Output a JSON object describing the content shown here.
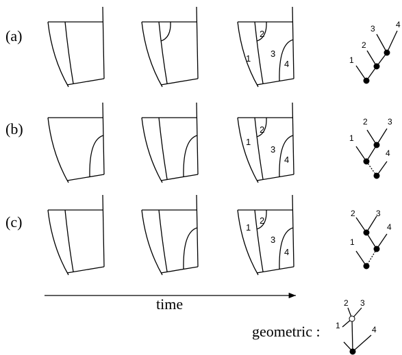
{
  "rows": [
    {
      "label": "(a)",
      "panel_labels": [
        "1",
        "2",
        "3",
        "4"
      ],
      "tree_labels": [
        "1",
        "2",
        "3",
        "4"
      ]
    },
    {
      "label": "(b)",
      "panel_labels": [
        "1",
        "2",
        "3",
        "4"
      ],
      "tree_labels": [
        "1",
        "2",
        "3",
        "4"
      ]
    },
    {
      "label": "(c)",
      "panel_labels": [
        "1",
        "2",
        "3",
        "4"
      ],
      "tree_labels": [
        "1",
        "2",
        "3",
        "4"
      ]
    }
  ],
  "time_label": "time",
  "geometric": {
    "label": "geometric :",
    "tree_labels": [
      "1",
      "2",
      "3",
      "4"
    ]
  }
}
